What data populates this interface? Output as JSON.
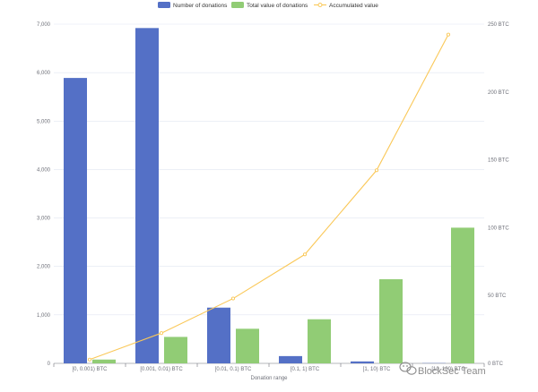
{
  "chart_data": {
    "type": "bar",
    "categories": [
      "[0, 0.001) BTC",
      "[0.001, 0.01) BTC",
      "[0.01, 0.1) BTC",
      "[0.1, 1) BTC",
      "[1, 10) BTC",
      "[10, 100) BTC"
    ],
    "series": [
      {
        "name": "Number of donations",
        "type": "bar",
        "axis": "left",
        "color": "#5470c6",
        "values": [
          5890,
          6920,
          1150,
          150,
          40,
          5
        ]
      },
      {
        "name": "Total value of donations",
        "type": "bar",
        "axis": "right",
        "color": "#91cc75",
        "values": [
          2.8,
          19.5,
          25.5,
          32.5,
          62,
          100
        ]
      },
      {
        "name": "Accumulated value",
        "type": "line",
        "axis": "right",
        "color": "#fac858",
        "values": [
          2.8,
          22.3,
          47.8,
          80.3,
          142.3,
          242.3
        ]
      }
    ],
    "xlabel": "Donation range",
    "ylim": [
      0,
      7000
    ],
    "y_ticks": [
      "0",
      "1,000",
      "2,000",
      "3,000",
      "4,000",
      "5,000",
      "6,000",
      "7,000"
    ],
    "y2lim": [
      0,
      250
    ],
    "y2_ticks": [
      "0 BTC",
      "50 BTC",
      "100 BTC",
      "150 BTC",
      "200 BTC",
      "250 BTC"
    ],
    "grid": true,
    "legend_position": "top-center"
  },
  "watermark": {
    "text": "BlockSec Team",
    "icon": "wechat-icon"
  }
}
